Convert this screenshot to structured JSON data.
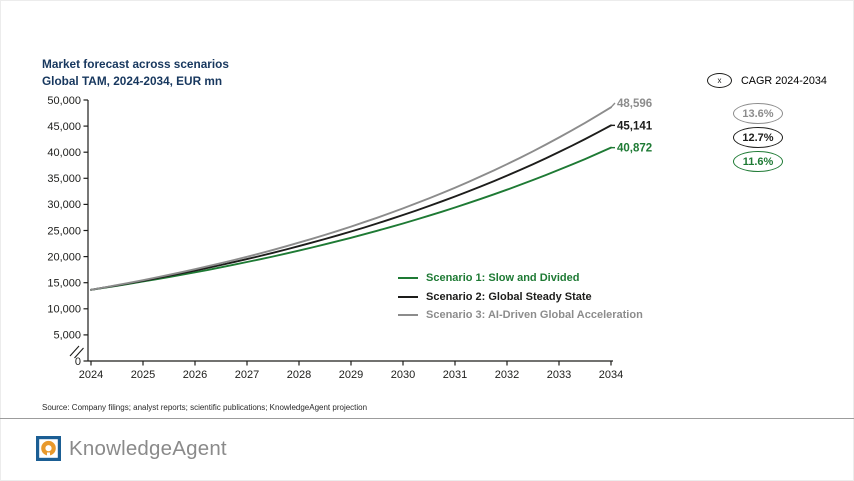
{
  "header": {
    "title": "Market forecast across scenarios",
    "subtitle": "Global TAM, 2024-2034, EUR mn",
    "title_color": "#17375e"
  },
  "cagr": {
    "icon_label": "x",
    "label": "CAGR 2024-2034",
    "badges": [
      {
        "value": "13.6%",
        "color": "#8c8c8c",
        "bold": false
      },
      {
        "value": "12.7%",
        "color": "#1d1d1b",
        "bold": true
      },
      {
        "value": "11.6%",
        "color": "#1e7a34",
        "bold": true
      }
    ]
  },
  "chart_data": {
    "type": "line",
    "title": "Market forecast across scenarios",
    "subtitle": "Global TAM, 2024-2034, EUR mn",
    "x": [
      2024,
      2025,
      2026,
      2027,
      2028,
      2029,
      2030,
      2031,
      2032,
      2033,
      2034
    ],
    "ylim": [
      0,
      50000
    ],
    "ytick_labels": [
      "0",
      "5,000",
      "10,000",
      "15,000",
      "20,000",
      "25,000",
      "30,000",
      "35,000",
      "40,000",
      "45,000",
      "50,000"
    ],
    "axis_break_at_zero": true,
    "grid": false,
    "legend_position": "inside-center-right",
    "axis_color": "#1d1d1b",
    "series": [
      {
        "name": "Scenario 1: Slow and Divided",
        "color": "#1e7a34",
        "cagr": "11.6%",
        "end_label": "40,872",
        "values": [
          13640,
          15222,
          16987,
          18957,
          21156,
          23610,
          26349,
          29405,
          32815,
          36620,
          40872
        ]
      },
      {
        "name": "Scenario 2: Global Steady State",
        "color": "#1d1d1b",
        "cagr": "12.7%",
        "end_label": "45,141",
        "values": [
          13640,
          15373,
          17327,
          19529,
          22011,
          24809,
          27961,
          31514,
          35519,
          40032,
          45141
        ]
      },
      {
        "name": "Scenario 3: AI-Driven Global Acceleration",
        "color": "#8c8c8c",
        "cagr": "13.6%",
        "end_label": "48,596",
        "values": [
          13640,
          15488,
          17587,
          19971,
          22677,
          25750,
          29239,
          33201,
          37700,
          42809,
          48596
        ]
      }
    ]
  },
  "footer": {
    "source": "Source: Company filings; analyst reports; scientific publications; KnowledgeAgent projection",
    "brand": "KnowledgeAgent",
    "brand_color": "#8a8a8a",
    "logo": {
      "blue": "#1b5e94",
      "orange": "#e8992c",
      "white": "#ffffff"
    }
  }
}
